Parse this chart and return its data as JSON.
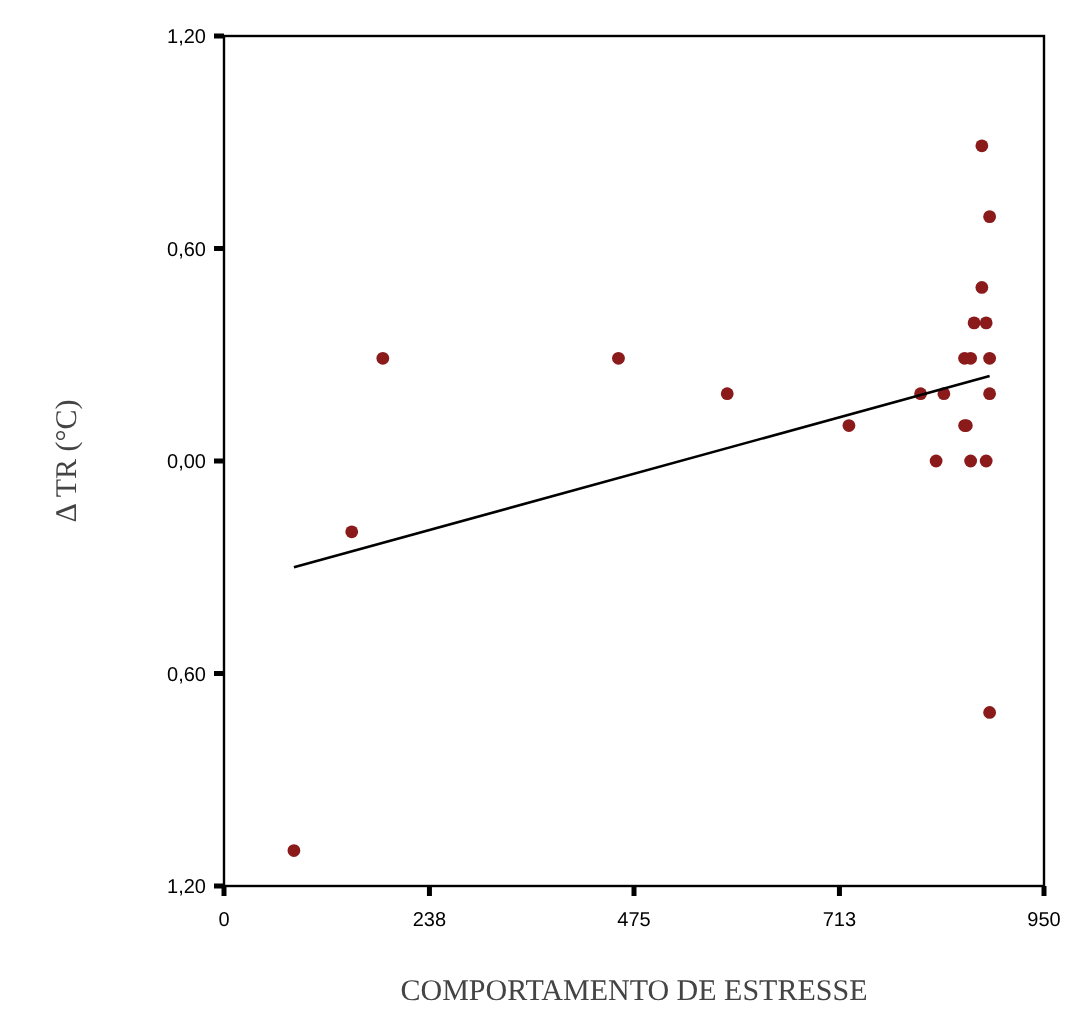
{
  "chart_data": {
    "type": "scatter",
    "xlabel": "COMPORTAMENTO DE ESTRESSE",
    "ylabel": "Δ TR (°C)",
    "xlim": [
      0,
      950
    ],
    "xticks": [
      0,
      238,
      475,
      713,
      950
    ],
    "ylim": [
      -1.2,
      1.2
    ],
    "yticks": [
      {
        "value": -1.2,
        "label": "1,20"
      },
      {
        "value": -0.6,
        "label": "0,60"
      },
      {
        "value": 0,
        "label": "0,00"
      },
      {
        "value": 0.6,
        "label": "0,60"
      },
      {
        "value": 1.2,
        "label": "1,20"
      }
    ],
    "grid": false,
    "marker": "circle",
    "series": [
      {
        "color": "#8b1a1a",
        "x": [
          81,
          148,
          184,
          457,
          583,
          724,
          807,
          825,
          834,
          858,
          858,
          860,
          865,
          865,
          869,
          878,
          878,
          883,
          883,
          887,
          887,
          887,
          887
        ],
        "values": [
          -1.1,
          -0.2,
          0.29,
          0.29,
          0.19,
          0.1,
          0.19,
          0,
          0.19,
          0.1,
          0.29,
          0.1,
          0,
          0.29,
          0.39,
          0.89,
          0.49,
          0.39,
          0,
          0.69,
          0.29,
          0.19,
          -0.71
        ]
      },
      {
        "type": "line",
        "color": "#000000",
        "x": [
          81,
          887
        ],
        "values": [
          -0.3,
          0.24
        ],
        "marker": "none"
      }
    ]
  }
}
